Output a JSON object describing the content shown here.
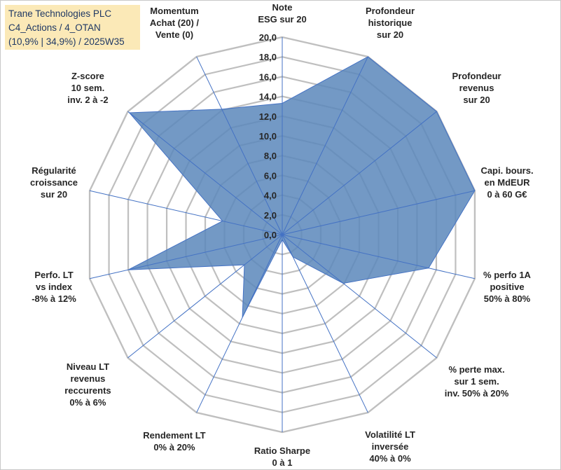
{
  "title_lines": [
    "Trane Technologies PLC",
    "C4_Actions / 4_OTAN",
    "(10,9% | 34,9%) / 2025W35"
  ],
  "colors": {
    "series_fill": "#5b87bb",
    "series_stroke": "#4472c4",
    "grid": "#bfbfbf",
    "spoke": "#4472c4",
    "title_bg": "#fbe9b7"
  },
  "chart_data": {
    "type": "radar",
    "r_min": 0,
    "r_max": 20,
    "r_step": 2,
    "grid": true,
    "tick_labels": [
      "0,0",
      "2,0",
      "4,0",
      "6,0",
      "8,0",
      "10,0",
      "12,0",
      "14,0",
      "16,0",
      "18,0",
      "20,0"
    ],
    "categories": [
      "Note\nESG sur 20",
      "Profondeur\nhistorique\nsur 20",
      "Profondeur\nrevenus\nsur 20",
      "Capi. bours.\nen MdEUR\n0 à 60 G€",
      "% perfo 1A\npositive\n50% à 80%",
      "% perte max.\nsur 1 sem.\ninv. 50% à 20%",
      "Volatilité LT\ninversée\n40% à 0%",
      "Ratio Sharpe\n0 à 1",
      "Rendement LT\n0% à 20%",
      "Niveau LT\nrevenus\nreccurents\n0% à 6%",
      "Perfo. LT\nvs index\n-8% à 12%",
      "Régularité\ncroissance\nsur 20",
      "Z-score\n10 sem.\ninv. 2 à -2",
      "Momentum\nAchat (20) /\nVente (0)"
    ],
    "values": [
      13.3,
      20.0,
      20.0,
      20.0,
      15.2,
      7.9,
      2.5,
      0.5,
      9.3,
      4.9,
      16.0,
      6.2,
      19.8,
      14.1
    ]
  }
}
